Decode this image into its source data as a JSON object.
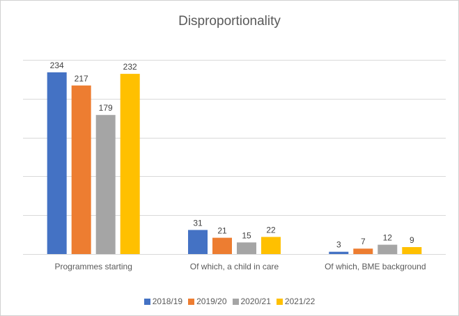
{
  "chart_data": {
    "type": "bar",
    "title": "Disproportionality",
    "categories": [
      "Programmes starting",
      "Of which, a child in care",
      "Of which, BME background"
    ],
    "series": [
      {
        "name": "2018/19",
        "color": "#4472C4",
        "values": [
          234,
          31,
          3
        ]
      },
      {
        "name": "2019/20",
        "color": "#ED7D31",
        "values": [
          217,
          21,
          7
        ]
      },
      {
        "name": "2020/21",
        "color": "#A5A5A5",
        "values": [
          179,
          15,
          12
        ]
      },
      {
        "name": "2021/22",
        "color": "#FFC000",
        "values": [
          232,
          22,
          9
        ]
      }
    ],
    "ylim": [
      0,
      250
    ],
    "grid": true,
    "legend_position": "bottom"
  }
}
